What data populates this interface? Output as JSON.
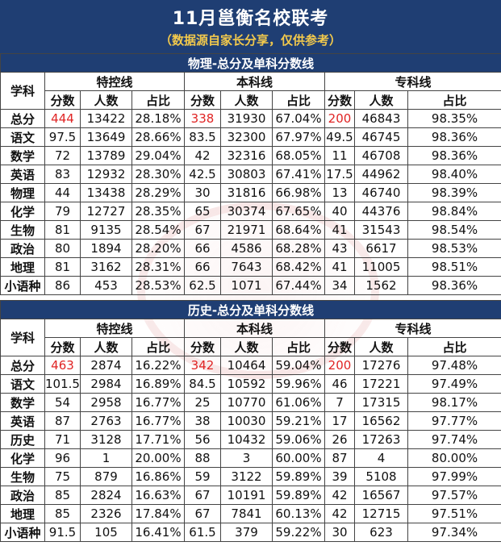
{
  "title": "11月邕衡名校联考",
  "subtitle": "（数据源自家长分享，仅供参考）",
  "highlight_color": "#e02424",
  "header_color": "#1f3e73",
  "sections": [
    {
      "title": "物理-总分及单科分数线",
      "subject_header": "学科",
      "groups": [
        "特控线",
        "本科线",
        "专科线"
      ],
      "columns": [
        "分数",
        "人数",
        "占比",
        "分数",
        "人数",
        "占比",
        "分数",
        "人数",
        "占比"
      ],
      "rows": [
        {
          "subject": "总分",
          "cells": [
            "444",
            "13422",
            "28.18%",
            "338",
            "31930",
            "67.04%",
            "200",
            "46843",
            "98.35%"
          ]
        },
        {
          "subject": "语文",
          "cells": [
            "97.5",
            "13649",
            "28.66%",
            "83.5",
            "32300",
            "67.97%",
            "49.5",
            "46745",
            "98.36%"
          ]
        },
        {
          "subject": "数学",
          "cells": [
            "72",
            "13789",
            "29.04%",
            "42",
            "32316",
            "68.05%",
            "11",
            "46708",
            "98.36%"
          ]
        },
        {
          "subject": "英语",
          "cells": [
            "83",
            "12932",
            "28.30%",
            "42.5",
            "30803",
            "67.41%",
            "17.5",
            "44962",
            "98.40%"
          ]
        },
        {
          "subject": "物理",
          "cells": [
            "44",
            "13438",
            "28.29%",
            "30",
            "31816",
            "66.98%",
            "13",
            "46740",
            "98.39%"
          ]
        },
        {
          "subject": "化学",
          "cells": [
            "79",
            "12727",
            "28.35%",
            "65",
            "30374",
            "67.65%",
            "40",
            "44376",
            "98.84%"
          ]
        },
        {
          "subject": "生物",
          "cells": [
            "81",
            "9135",
            "28.54%",
            "67",
            "21971",
            "68.64%",
            "41",
            "31543",
            "98.54%"
          ]
        },
        {
          "subject": "政治",
          "cells": [
            "80",
            "1894",
            "28.20%",
            "66",
            "4586",
            "68.28%",
            "43",
            "6617",
            "98.53%"
          ]
        },
        {
          "subject": "地理",
          "cells": [
            "81",
            "3162",
            "28.31%",
            "66",
            "7643",
            "68.42%",
            "41",
            "11005",
            "98.51%"
          ]
        },
        {
          "subject": "小语种",
          "cells": [
            "86",
            "453",
            "28.53%",
            "62.5",
            "1071",
            "67.44%",
            "34",
            "1562",
            "98.36%"
          ]
        }
      ]
    },
    {
      "title": "历史-总分及单科分数线",
      "subject_header": "学科",
      "groups": [
        "特控线",
        "本科线",
        "专科线"
      ],
      "columns": [
        "分数",
        "人数",
        "占比",
        "分数",
        "人数",
        "占比",
        "分数",
        "人数",
        "占比"
      ],
      "rows": [
        {
          "subject": "总分",
          "cells": [
            "463",
            "2874",
            "16.22%",
            "342",
            "10464",
            "59.04%",
            "200",
            "17276",
            "97.48%"
          ]
        },
        {
          "subject": "语文",
          "cells": [
            "101.5",
            "2984",
            "16.89%",
            "84.5",
            "10592",
            "59.96%",
            "46",
            "17221",
            "97.49%"
          ]
        },
        {
          "subject": "数学",
          "cells": [
            "54",
            "2958",
            "16.77%",
            "25",
            "10770",
            "61.06%",
            "7",
            "17315",
            "98.17%"
          ]
        },
        {
          "subject": "英语",
          "cells": [
            "87",
            "2763",
            "16.77%",
            "38",
            "10030",
            "59.21%",
            "17",
            "16562",
            "97.77%"
          ]
        },
        {
          "subject": "历史",
          "cells": [
            "71",
            "3128",
            "17.71%",
            "56",
            "10432",
            "59.06%",
            "26",
            "17263",
            "97.74%"
          ]
        },
        {
          "subject": "化学",
          "cells": [
            "96",
            "1",
            "20.00%",
            "88",
            "3",
            "60.00%",
            "87",
            "4",
            "80.00%"
          ]
        },
        {
          "subject": "生物",
          "cells": [
            "75",
            "879",
            "16.86%",
            "59",
            "3122",
            "59.89%",
            "39",
            "5108",
            "97.99%"
          ]
        },
        {
          "subject": "政治",
          "cells": [
            "85",
            "2824",
            "16.63%",
            "67",
            "10191",
            "59.89%",
            "42",
            "16567",
            "97.57%"
          ]
        },
        {
          "subject": "地理",
          "cells": [
            "85",
            "2326",
            "17.84%",
            "67",
            "7841",
            "60.13%",
            "42",
            "12715",
            "97.51%"
          ]
        },
        {
          "subject": "小语种",
          "cells": [
            "91.5",
            "105",
            "16.41%",
            "61.5",
            "379",
            "59.22%",
            "30",
            "623",
            "97.34%"
          ]
        }
      ]
    }
  ]
}
